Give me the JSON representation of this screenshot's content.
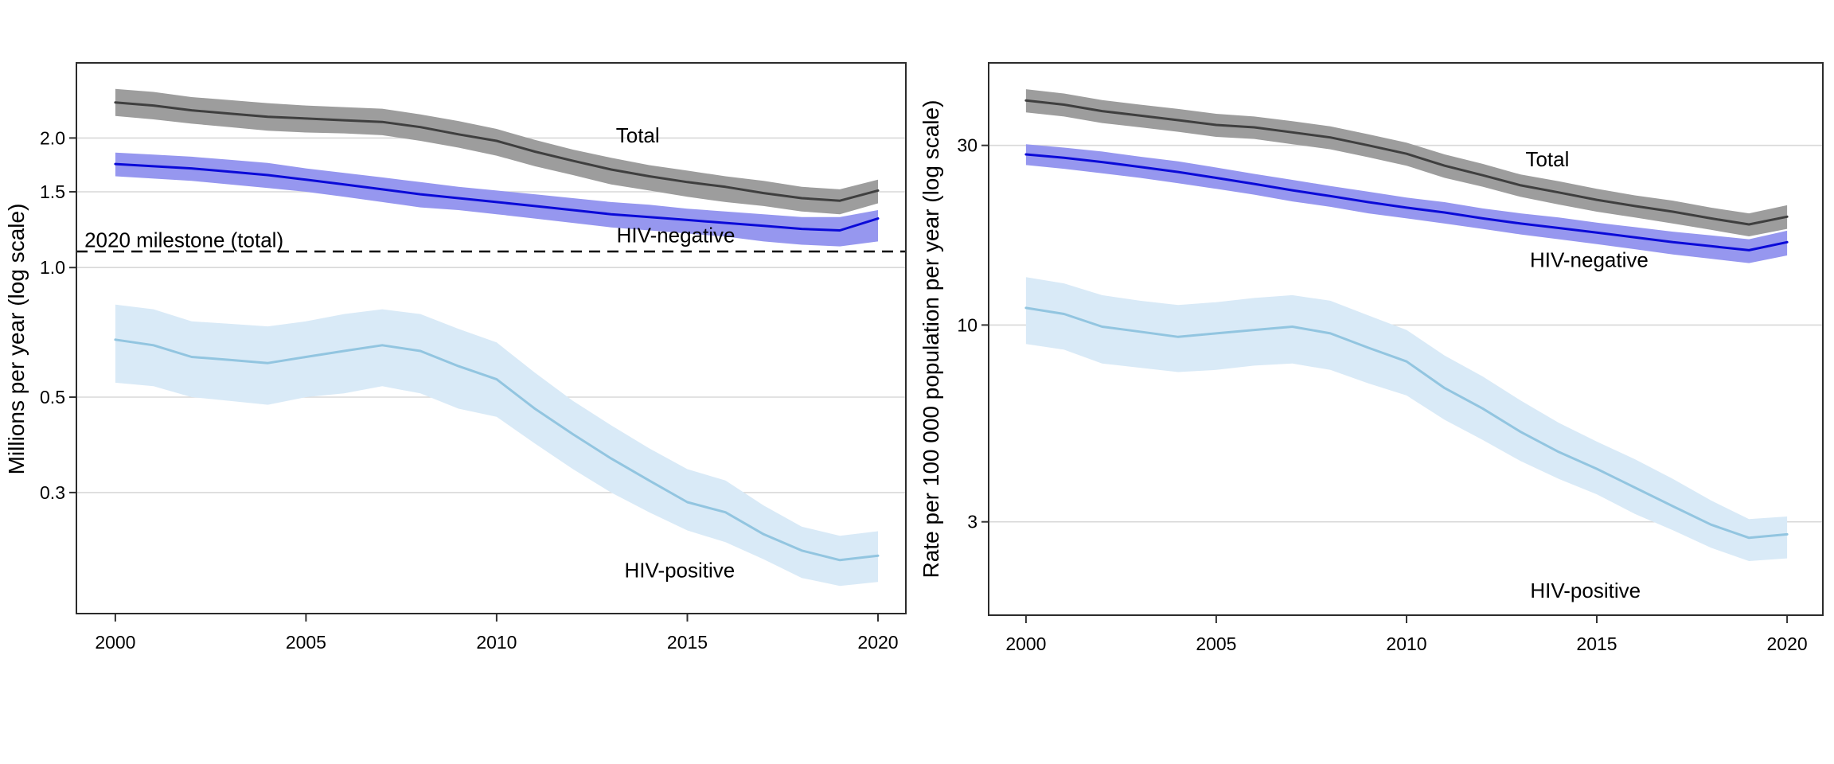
{
  "colors": {
    "background": "#ffffff",
    "grid": "#d8d8d8",
    "border": "#2b2b2b",
    "tick": "#333333",
    "text": "#000000",
    "milestone_line": "#000000"
  },
  "chart_data": [
    {
      "type": "line",
      "title": "",
      "xlabel": "",
      "ylabel": "Millions per year (log scale)",
      "scale": "log",
      "x": [
        2000,
        2001,
        2002,
        2003,
        2004,
        2005,
        2006,
        2007,
        2008,
        2009,
        2010,
        2011,
        2012,
        2013,
        2014,
        2015,
        2016,
        2017,
        2018,
        2019,
        2020
      ],
      "xlim": [
        1998.98,
        2020.73
      ],
      "ylim": [
        0.157,
        2.99
      ],
      "xticks": [
        {
          "v": 2000,
          "label": "2000"
        },
        {
          "v": 2005,
          "label": "2005"
        },
        {
          "v": 2010,
          "label": "2010"
        },
        {
          "v": 2015,
          "label": "2015"
        },
        {
          "v": 2020,
          "label": "2020"
        }
      ],
      "yticks": [
        {
          "v": 2.0,
          "label": "2.0"
        },
        {
          "v": 1.5,
          "label": "1.5"
        },
        {
          "v": 1.0,
          "label": "1.0"
        },
        {
          "v": 0.5,
          "label": "0.5"
        },
        {
          "v": 0.3,
          "label": "0.3"
        }
      ],
      "grid": "horizontal-only",
      "legend": "direct-labels",
      "milestone": {
        "v": 1.09,
        "label": "2020 milestone (total)",
        "label_at": {
          "x": 2001.8,
          "y": 1.16
        }
      },
      "series": [
        {
          "name": "Total",
          "line_color": "#3f3f3f",
          "band_color": "#9d9d9d",
          "label_at": {
            "x": 2013.7,
            "y": 2.03
          },
          "values": [
            2.42,
            2.38,
            2.32,
            2.28,
            2.24,
            2.22,
            2.2,
            2.18,
            2.12,
            2.04,
            1.97,
            1.86,
            1.77,
            1.69,
            1.63,
            1.58,
            1.54,
            1.49,
            1.45,
            1.43,
            1.51
          ],
          "lo": [
            2.25,
            2.21,
            2.16,
            2.12,
            2.08,
            2.06,
            2.05,
            2.03,
            1.97,
            1.9,
            1.82,
            1.72,
            1.64,
            1.56,
            1.51,
            1.46,
            1.42,
            1.39,
            1.35,
            1.33,
            1.41
          ],
          "hi": [
            2.6,
            2.56,
            2.49,
            2.45,
            2.41,
            2.38,
            2.36,
            2.34,
            2.27,
            2.19,
            2.1,
            1.98,
            1.88,
            1.8,
            1.73,
            1.68,
            1.63,
            1.59,
            1.54,
            1.52,
            1.6
          ]
        },
        {
          "name": "HIV-negative",
          "line_color": "#0a0ad8",
          "band_color": "#9697ef",
          "label_at": {
            "x": 2014.7,
            "y": 1.19
          },
          "values": [
            1.74,
            1.72,
            1.7,
            1.67,
            1.64,
            1.6,
            1.56,
            1.52,
            1.48,
            1.45,
            1.42,
            1.39,
            1.36,
            1.33,
            1.31,
            1.29,
            1.27,
            1.25,
            1.23,
            1.22,
            1.3
          ],
          "lo": [
            1.63,
            1.61,
            1.59,
            1.56,
            1.53,
            1.5,
            1.46,
            1.42,
            1.38,
            1.36,
            1.33,
            1.3,
            1.27,
            1.24,
            1.22,
            1.2,
            1.18,
            1.15,
            1.13,
            1.12,
            1.15
          ],
          "hi": [
            1.85,
            1.83,
            1.81,
            1.78,
            1.75,
            1.7,
            1.66,
            1.62,
            1.58,
            1.54,
            1.51,
            1.48,
            1.45,
            1.42,
            1.4,
            1.37,
            1.35,
            1.33,
            1.31,
            1.31,
            1.36
          ]
        },
        {
          "name": "HIV-positive",
          "line_color": "#92c5e0",
          "band_color": "#d9eaf7",
          "label_at": {
            "x": 2014.8,
            "y": 0.198
          },
          "values": [
            0.68,
            0.66,
            0.62,
            0.61,
            0.6,
            0.62,
            0.64,
            0.66,
            0.64,
            0.59,
            0.55,
            0.47,
            0.41,
            0.36,
            0.32,
            0.285,
            0.27,
            0.24,
            0.22,
            0.209,
            0.214
          ],
          "lo": [
            0.54,
            0.53,
            0.5,
            0.49,
            0.48,
            0.5,
            0.51,
            0.53,
            0.51,
            0.47,
            0.45,
            0.39,
            0.34,
            0.3,
            0.27,
            0.245,
            0.23,
            0.21,
            0.19,
            0.182,
            0.186
          ],
          "hi": [
            0.82,
            0.8,
            0.75,
            0.74,
            0.73,
            0.75,
            0.78,
            0.8,
            0.78,
            0.72,
            0.67,
            0.57,
            0.49,
            0.43,
            0.38,
            0.34,
            0.32,
            0.28,
            0.25,
            0.238,
            0.244
          ]
        }
      ]
    },
    {
      "type": "line",
      "title": "",
      "xlabel": "",
      "ylabel": "Rate per 100 000 population per year (log scale)",
      "scale": "log",
      "x": [
        2000,
        2001,
        2002,
        2003,
        2004,
        2005,
        2006,
        2007,
        2008,
        2009,
        2010,
        2011,
        2012,
        2013,
        2014,
        2015,
        2016,
        2017,
        2018,
        2019,
        2020
      ],
      "xlim": [
        1999.02,
        2020.94
      ],
      "ylim": [
        1.695,
        49.7
      ],
      "xticks": [
        {
          "v": 2000,
          "label": "2000"
        },
        {
          "v": 2005,
          "label": "2005"
        },
        {
          "v": 2010,
          "label": "2010"
        },
        {
          "v": 2015,
          "label": "2015"
        },
        {
          "v": 2020,
          "label": "2020"
        }
      ],
      "yticks": [
        {
          "v": 30,
          "label": "30"
        },
        {
          "v": 10,
          "label": "10"
        },
        {
          "v": 3,
          "label": "3"
        }
      ],
      "grid": "horizontal-only",
      "legend": "direct-labels",
      "milestone": null,
      "series": [
        {
          "name": "Total",
          "line_color": "#3f3f3f",
          "band_color": "#9d9d9d",
          "label_at": {
            "x": 2013.7,
            "y": 27.6
          },
          "values": [
            39.5,
            38.5,
            37.0,
            36.0,
            35.0,
            34.0,
            33.5,
            32.5,
            31.5,
            30.0,
            28.5,
            26.5,
            25.0,
            23.5,
            22.5,
            21.5,
            20.7,
            20.0,
            19.2,
            18.5,
            19.4
          ],
          "lo": [
            36.7,
            35.8,
            34.4,
            33.5,
            32.6,
            31.6,
            31.2,
            30.2,
            29.3,
            27.9,
            26.5,
            24.6,
            23.3,
            21.9,
            20.9,
            20.0,
            19.3,
            18.6,
            17.9,
            17.2,
            18.0
          ],
          "hi": [
            42.3,
            41.2,
            39.6,
            38.5,
            37.5,
            36.4,
            35.8,
            34.8,
            33.7,
            32.1,
            30.5,
            28.4,
            26.8,
            25.1,
            24.1,
            23.0,
            22.1,
            21.4,
            20.5,
            19.8,
            20.8
          ]
        },
        {
          "name": "HIV-negative",
          "line_color": "#0a0ad8",
          "band_color": "#9697ef",
          "label_at": {
            "x": 2014.8,
            "y": 14.9
          },
          "values": [
            28.4,
            27.8,
            27.1,
            26.3,
            25.5,
            24.6,
            23.7,
            22.8,
            22.0,
            21.2,
            20.5,
            19.9,
            19.2,
            18.6,
            18.1,
            17.6,
            17.1,
            16.6,
            16.2,
            15.8,
            16.6
          ],
          "lo": [
            26.6,
            26.0,
            25.3,
            24.6,
            23.8,
            23.0,
            22.2,
            21.3,
            20.6,
            19.8,
            19.2,
            18.6,
            18.0,
            17.4,
            16.9,
            16.4,
            15.9,
            15.4,
            15.0,
            14.6,
            15.3
          ],
          "hi": [
            30.2,
            29.6,
            28.9,
            28.0,
            27.2,
            26.2,
            25.2,
            24.3,
            23.4,
            22.6,
            21.8,
            21.2,
            20.4,
            19.8,
            19.3,
            18.7,
            18.2,
            17.7,
            17.3,
            16.9,
            17.8
          ]
        },
        {
          "name": "HIV-positive",
          "line_color": "#92c5e0",
          "band_color": "#d9eaf7",
          "label_at": {
            "x": 2014.7,
            "y": 1.97
          },
          "values": [
            11.1,
            10.7,
            9.9,
            9.6,
            9.3,
            9.5,
            9.7,
            9.9,
            9.5,
            8.7,
            8.0,
            6.8,
            6.0,
            5.2,
            4.6,
            4.15,
            3.7,
            3.3,
            2.95,
            2.72,
            2.78
          ],
          "lo": [
            8.9,
            8.6,
            7.9,
            7.7,
            7.5,
            7.6,
            7.8,
            7.9,
            7.6,
            7.0,
            6.5,
            5.6,
            4.95,
            4.35,
            3.9,
            3.55,
            3.15,
            2.85,
            2.56,
            2.36,
            2.4
          ],
          "hi": [
            13.4,
            12.9,
            12.0,
            11.6,
            11.3,
            11.5,
            11.8,
            12.0,
            11.6,
            10.6,
            9.7,
            8.3,
            7.3,
            6.3,
            5.5,
            4.9,
            4.4,
            3.9,
            3.42,
            3.05,
            3.1
          ]
        }
      ]
    }
  ]
}
